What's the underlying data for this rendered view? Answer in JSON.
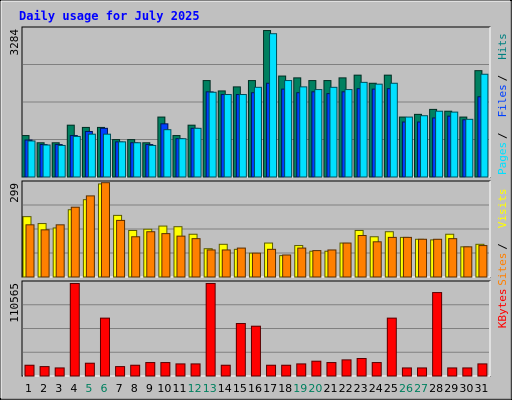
{
  "page": {
    "title": "Daily usage for July 2025"
  },
  "chart_data": [
    {
      "type": "bar",
      "panel": "hits-files-pages",
      "title": "Daily usage for July 2025",
      "ymax_label": "3284",
      "ylim": [
        0,
        3284
      ],
      "grid": true,
      "legend": [
        {
          "label": "Pages",
          "color": "#00e0ff"
        },
        {
          "label": "Files",
          "color": "#0040ff"
        },
        {
          "label": "Hits",
          "color": "#008080"
        }
      ],
      "categories": [
        "1",
        "2",
        "3",
        "4",
        "5",
        "6",
        "7",
        "8",
        "9",
        "10",
        "11",
        "12",
        "13",
        "14",
        "15",
        "16",
        "17",
        "18",
        "19",
        "20",
        "21",
        "22",
        "23",
        "24",
        "25",
        "26",
        "27",
        "28",
        "29",
        "30",
        "31"
      ],
      "weekend_days": [
        "5",
        "6",
        "12",
        "13",
        "19",
        "20",
        "26",
        "27"
      ],
      "series": [
        {
          "name": "Hits",
          "color": "#008060",
          "values": [
            920,
            760,
            760,
            1150,
            1100,
            1100,
            830,
            830,
            760,
            1330,
            920,
            1150,
            2140,
            1910,
            2000,
            2140,
            3250,
            2240,
            2200,
            2140,
            2140,
            2200,
            2260,
            2080,
            2260,
            1330,
            1390,
            1500,
            1460,
            1330,
            2360
          ]
        },
        {
          "name": "Files",
          "color": "#0040ff",
          "values": [
            820,
            720,
            720,
            920,
            1010,
            1080,
            780,
            760,
            720,
            1180,
            850,
            1080,
            1890,
            1830,
            1830,
            1870,
            2080,
            1950,
            1870,
            1890,
            1850,
            1890,
            1960,
            1950,
            1960,
            1220,
            1220,
            1310,
            1350,
            1270,
            1780
          ]
        },
        {
          "name": "Pages",
          "color": "#00e0ff",
          "values": [
            800,
            710,
            700,
            900,
            950,
            950,
            780,
            760,
            700,
            1050,
            850,
            1080,
            1880,
            1830,
            1830,
            1990,
            3180,
            2140,
            2000,
            1940,
            1990,
            1940,
            2100,
            2060,
            2080,
            1330,
            1360,
            1460,
            1440,
            1280,
            2280
          ]
        }
      ]
    },
    {
      "type": "bar",
      "panel": "visits-sites",
      "ymax_label": "299",
      "ylim": [
        0,
        299
      ],
      "grid": true,
      "legend": [
        {
          "label": "Sites",
          "color": "#ff8000"
        },
        {
          "label": "Visits",
          "color": "#ffff00"
        }
      ],
      "categories": [
        "1",
        "2",
        "3",
        "4",
        "5",
        "6",
        "7",
        "8",
        "9",
        "10",
        "11",
        "12",
        "13",
        "14",
        "15",
        "16",
        "17",
        "18",
        "19",
        "20",
        "21",
        "22",
        "23",
        "24",
        "25",
        "26",
        "27",
        "28",
        "29",
        "30",
        "31"
      ],
      "series": [
        {
          "name": "Visits",
          "color": "#ffff00",
          "values": [
            192,
            170,
            156,
            214,
            246,
            296,
            196,
            148,
            152,
            162,
            160,
            136,
            90,
            104,
            88,
            76,
            108,
            68,
            100,
            82,
            82,
            108,
            148,
            128,
            144,
            126,
            120,
            118,
            136,
            96,
            104
          ]
        },
        {
          "name": "Sites",
          "color": "#ff8000",
          "values": [
            166,
            150,
            166,
            222,
            258,
            300,
            180,
            128,
            144,
            138,
            130,
            122,
            86,
            86,
            92,
            76,
            88,
            70,
            92,
            84,
            86,
            108,
            132,
            112,
            126,
            126,
            120,
            120,
            122,
            96,
            100
          ]
        }
      ]
    },
    {
      "type": "bar",
      "panel": "kbytes",
      "ymax_label": "110565",
      "ylim": [
        0,
        110565
      ],
      "grid": true,
      "legend": [
        {
          "label": "KBytes",
          "color": "#ff0000"
        }
      ],
      "categories": [
        "1",
        "2",
        "3",
        "4",
        "5",
        "6",
        "7",
        "8",
        "9",
        "10",
        "11",
        "12",
        "13",
        "14",
        "15",
        "16",
        "17",
        "18",
        "19",
        "20",
        "21",
        "22",
        "23",
        "24",
        "25",
        "26",
        "27",
        "28",
        "29",
        "30",
        "31"
      ],
      "series": [
        {
          "name": "KBytes",
          "color": "#ff0000",
          "values": [
            12800,
            11200,
            9600,
            110000,
            15200,
            68800,
            11200,
            12800,
            16000,
            16000,
            14400,
            14400,
            110000,
            12800,
            62400,
            59200,
            12800,
            12800,
            14400,
            17600,
            16000,
            19200,
            20800,
            16000,
            68800,
            9600,
            9600,
            99200,
            9600,
            9600,
            14400
          ]
        }
      ]
    }
  ]
}
